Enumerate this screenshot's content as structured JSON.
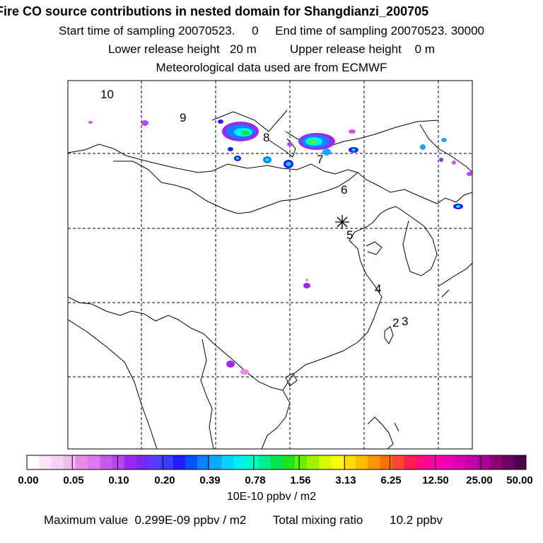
{
  "header": {
    "title": "Fire CO source contributions in nested domain for Shangdianzi_200705",
    "sampling": "Start time of sampling 20070523.     0     End time of sampling 20070523. 30000",
    "release": "Lower release height   20 m          Upper release height    0 m",
    "meteo": "Meteorological data used are from ECMWF"
  },
  "map": {
    "receptor_marker": "asterisk",
    "trajectory_labels": [
      "10",
      "9",
      "8",
      "7",
      "6",
      "5",
      "4",
      "3",
      "2"
    ]
  },
  "colorbar": {
    "ticks": [
      "0.00",
      "0.05",
      "0.10",
      "0.20",
      "0.39",
      "0.78",
      "1.56",
      "3.13",
      "6.25",
      "12.50",
      "25.00",
      "50.00"
    ],
    "units": "10E-10 ppbv / m2",
    "colors": [
      "#ffffff",
      "#fbe6fb",
      "#f7d2f7",
      "#f2b8f2",
      "#e68ce6",
      "#dc78f0",
      "#c85ae6",
      "#b446f0",
      "#9b28f0",
      "#7828f0",
      "#5a3cff",
      "#3c3cff",
      "#1e1eff",
      "#0a50ff",
      "#0a82ff",
      "#0aaaff",
      "#0ad2ff",
      "#00f0f0",
      "#00fac8",
      "#00f090",
      "#00e650",
      "#1ee61e",
      "#64f000",
      "#a0f000",
      "#d2fa00",
      "#fafa00",
      "#ffdc00",
      "#ffbe00",
      "#ff9600",
      "#ff6e00",
      "#ff4632",
      "#ff1e50",
      "#ff0a82",
      "#ff00aa",
      "#f000b4",
      "#dc00b4",
      "#c800aa",
      "#aa0096",
      "#8c0078",
      "#6e0064",
      "#500050"
    ]
  },
  "footer": {
    "max_label": "Maximum value",
    "max_value": "0.299E-09 ppbv / m2",
    "total_label": "Total mixing ratio",
    "total_value": "10.2 ppbv"
  }
}
